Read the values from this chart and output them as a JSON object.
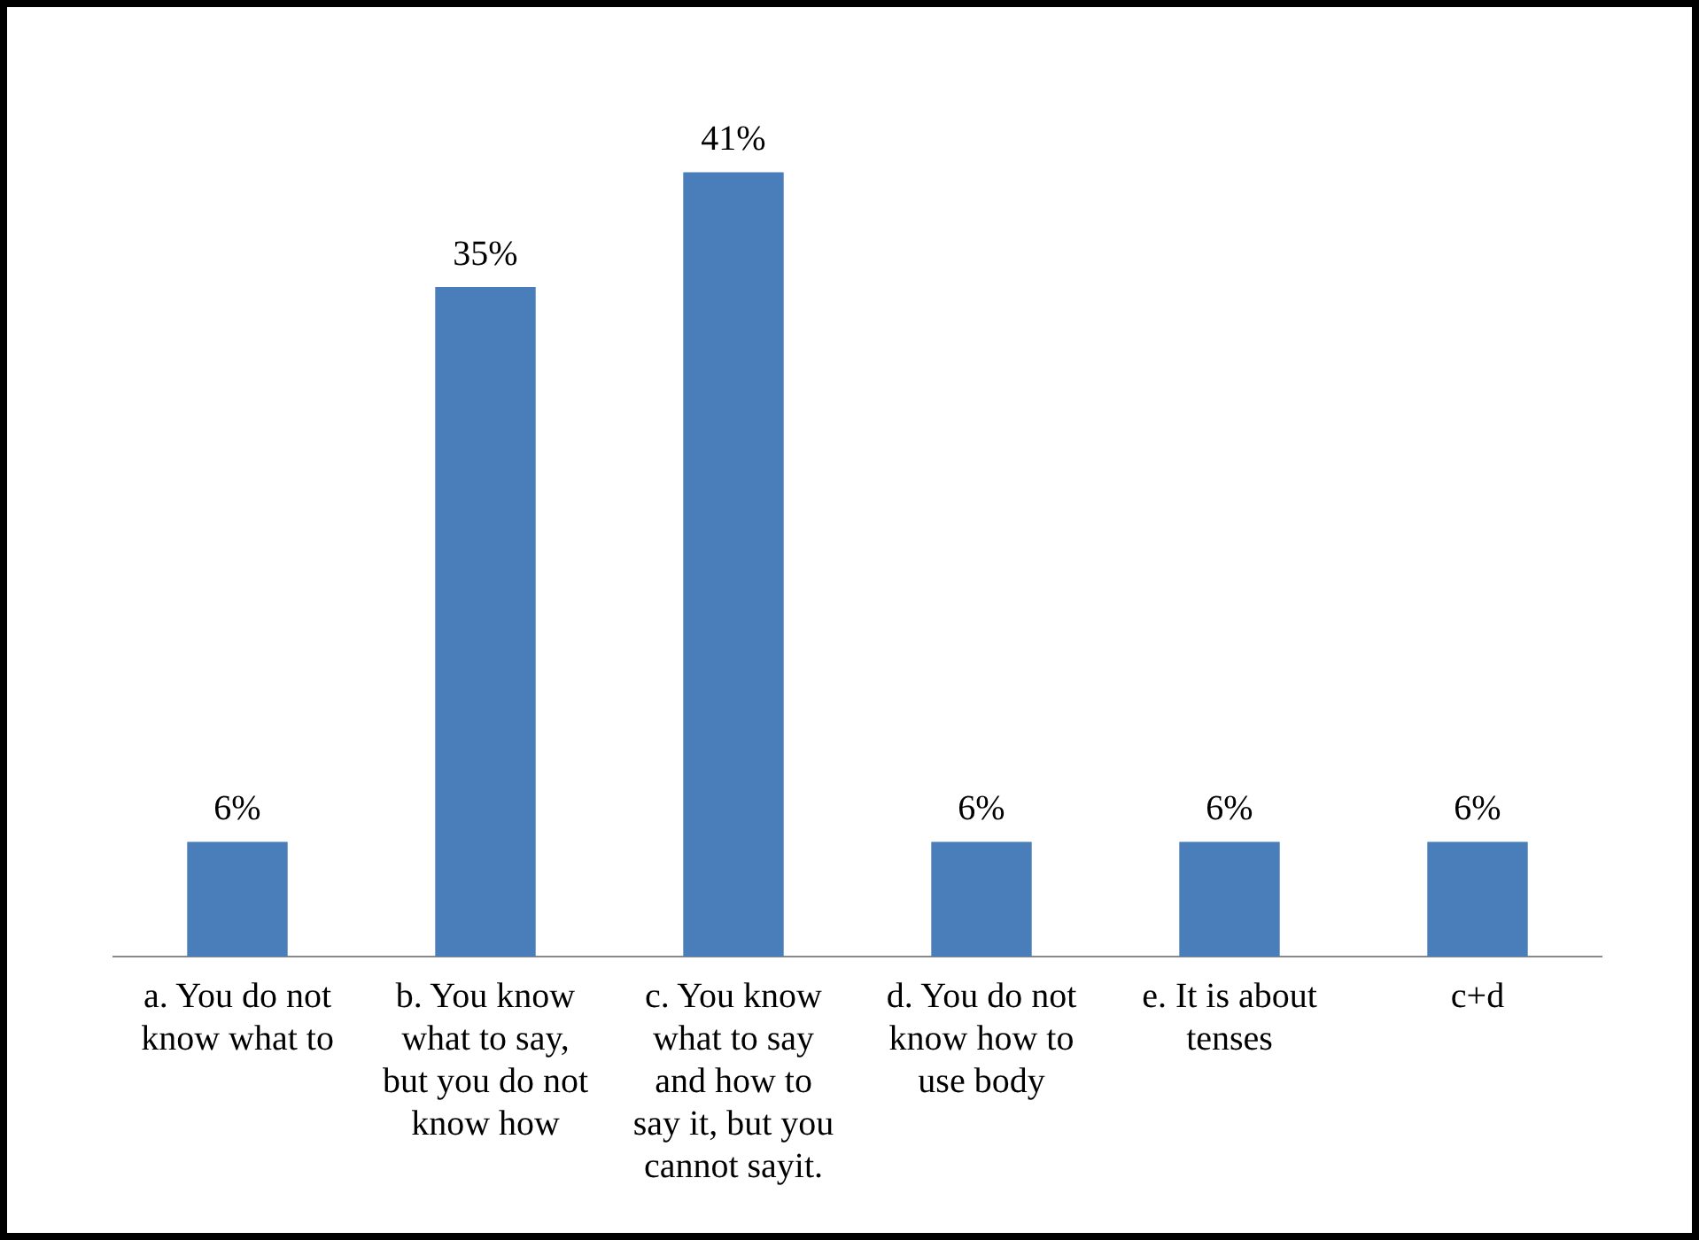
{
  "chart_data": {
    "type": "bar",
    "categories": [
      "a. You do not know what to",
      "b. You know what to say, but you do not know how",
      "c. You know what to say and how to say it, but you cannot sayit.",
      "d. You do not know how to use body",
      "e. It is about tenses",
      "c+d"
    ],
    "values": [
      6,
      35,
      41,
      6,
      6,
      6
    ],
    "value_labels": [
      "6%",
      "35%",
      "41%",
      "6%",
      "6%",
      "6%"
    ],
    "color": "#4a7ebb",
    "grid": false,
    "legend": false,
    "tick_labels": "x"
  }
}
